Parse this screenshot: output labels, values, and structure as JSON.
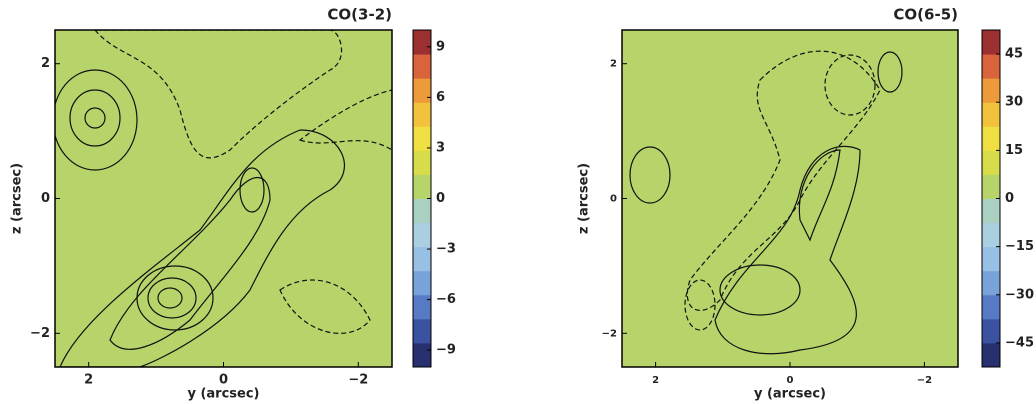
{
  "chart_data": [
    {
      "type": "contour",
      "title": "CO(3-2)",
      "xlabel": "y (arcsec)",
      "ylabel": "z (arcsec)",
      "xlim": [
        2.5,
        -2.5
      ],
      "ylim": [
        -2.5,
        2.5
      ],
      "xticks": [
        2,
        0,
        {
          "value": -2,
          "label": "−2"
        }
      ],
      "yticks": [
        {
          "value": -2,
          "label": "−2"
        },
        0,
        2
      ],
      "clim": [
        -10,
        10
      ],
      "cticks": [
        {
          "value": -9,
          "label": "−9"
        },
        {
          "value": -6,
          "label": "−6"
        },
        {
          "value": -3,
          "label": "−3"
        },
        0,
        3,
        6,
        9
      ],
      "colors": [
        "#28306f",
        "#3a52a0",
        "#567ac4",
        "#78a3da",
        "#98c0e4",
        "#a9cfe0",
        "#a9d0c0",
        "#b7d46a",
        "#d7dc4a",
        "#f0df42",
        "#f3c23c",
        "#ec9a3a",
        "#d9633a",
        "#9a3030"
      ]
    },
    {
      "type": "contour",
      "title": "CO(6-5)",
      "xlabel": "y (arcsec)",
      "ylabel": "z (arcsec)",
      "xlim": [
        2.5,
        -2.5
      ],
      "ylim": [
        -2.5,
        2.5
      ],
      "xticks": [
        2,
        0,
        {
          "value": -2,
          "label": "−2"
        }
      ],
      "yticks": [
        {
          "value": -2,
          "label": "−2"
        },
        0,
        2
      ],
      "clim": [
        -52.5,
        52.5
      ],
      "cticks": [
        {
          "value": -45,
          "label": "−45"
        },
        {
          "value": -30,
          "label": "−30"
        },
        {
          "value": -15,
          "label": "−15"
        },
        0,
        15,
        30,
        45
      ],
      "colors": [
        "#28306f",
        "#3a52a0",
        "#567ac4",
        "#78a3da",
        "#98c0e4",
        "#a9cfe0",
        "#a9d0c0",
        "#b7d46a",
        "#d7dc4a",
        "#f0df42",
        "#f3c23c",
        "#ec9a3a",
        "#d9633a",
        "#9a3030"
      ]
    }
  ]
}
